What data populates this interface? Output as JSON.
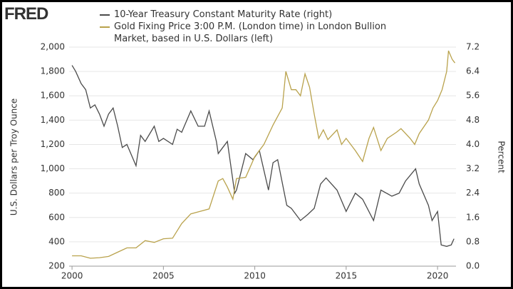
{
  "logo": "FRED",
  "chart_data": {
    "type": "line",
    "xlim": [
      1999.84,
      2021.01
    ],
    "xticks": [
      2000,
      2005,
      2010,
      2015,
      2020
    ],
    "ylim": [
      200,
      2000
    ],
    "yticks": [
      200,
      400,
      600,
      800,
      {
        "value": 1000,
        "label": "1,000"
      },
      {
        "value": 1200,
        "label": "1,200"
      },
      {
        "value": 1400,
        "label": "1,400"
      },
      {
        "value": 1600,
        "label": "1,600"
      },
      {
        "value": 1800,
        "label": "1,800"
      },
      {
        "value": 2000,
        "label": "2,000"
      }
    ],
    "y2lim": [
      0,
      7.2
    ],
    "y2ticks": [
      {
        "value": 0,
        "label": "0.0"
      },
      0.8,
      1.6,
      2.4,
      3.2,
      {
        "value": 4,
        "label": "4.0"
      },
      4.8,
      5.6,
      6.4,
      7.2
    ],
    "ylabel": "U.S. Dollars per Troy Ounce",
    "y2label": "Percent",
    "grid": true,
    "series": [
      {
        "name": "10-Year Treasury Constant Maturity Rate (right)",
        "color": "#4b4b4b",
        "axis": "y2",
        "x": [
          2000,
          2000.2,
          2000.5,
          2000.75,
          2001,
          2001.25,
          2001.5,
          2001.75,
          2002,
          2002.25,
          2002.5,
          2002.75,
          2003,
          2003.5,
          2003.75,
          2004,
          2004.5,
          2004.75,
          2005,
          2005.5,
          2005.75,
          2006,
          2006.5,
          2006.9,
          2007.25,
          2007.5,
          2007.9,
          2008,
          2008.5,
          2008.9,
          2009,
          2009.5,
          2009.9,
          2010.25,
          2010.75,
          2011,
          2011.25,
          2011.75,
          2012,
          2012.5,
          2012.9,
          2013.25,
          2013.6,
          2013.9,
          2014.5,
          2015,
          2015.5,
          2015.9,
          2016.5,
          2016.9,
          2017.5,
          2017.9,
          2018.25,
          2018.8,
          2019,
          2019.5,
          2019.7,
          2020,
          2020.2,
          2020.5,
          2020.75,
          2020.9
        ],
        "values": [
          6.6,
          6.4,
          6.0,
          5.8,
          5.2,
          5.3,
          5.0,
          4.6,
          5.0,
          5.2,
          4.6,
          3.9,
          4.0,
          3.3,
          4.3,
          4.1,
          4.6,
          4.1,
          4.2,
          4.0,
          4.5,
          4.4,
          5.1,
          4.6,
          4.6,
          5.1,
          4.1,
          3.7,
          4.1,
          2.4,
          2.5,
          3.7,
          3.5,
          3.8,
          2.5,
          3.4,
          3.5,
          2.0,
          1.9,
          1.5,
          1.7,
          1.9,
          2.7,
          2.9,
          2.5,
          1.8,
          2.4,
          2.2,
          1.5,
          2.5,
          2.3,
          2.4,
          2.8,
          3.2,
          2.7,
          2.0,
          1.5,
          1.8,
          0.7,
          0.65,
          0.7,
          0.9
        ]
      },
      {
        "name": "Gold Fixing Price 3:00 P.M. (London time) in London Bullion Market, based in U.S. Dollars (left)",
        "color": "#b9a24c",
        "axis": "y",
        "x": [
          2000,
          2000.5,
          2001,
          2001.5,
          2002,
          2002.5,
          2003,
          2003.5,
          2004,
          2004.5,
          2005,
          2005.5,
          2006,
          2006.5,
          2007,
          2007.5,
          2008,
          2008.25,
          2008.5,
          2008.8,
          2009,
          2009.5,
          2010,
          2010.5,
          2011,
          2011.5,
          2011.7,
          2012,
          2012.25,
          2012.5,
          2012.75,
          2013,
          2013.25,
          2013.5,
          2013.75,
          2014,
          2014.5,
          2014.75,
          2015,
          2015.5,
          2015.9,
          2016.25,
          2016.5,
          2016.9,
          2017.25,
          2017.75,
          2018,
          2018.5,
          2018.75,
          2019,
          2019.5,
          2019.75,
          2020,
          2020.25,
          2020.5,
          2020.6,
          2020.8,
          2020.95
        ],
        "values": [
          285,
          285,
          265,
          270,
          280,
          315,
          350,
          350,
          410,
          395,
          425,
          430,
          550,
          630,
          650,
          670,
          900,
          920,
          850,
          750,
          920,
          930,
          1100,
          1200,
          1360,
          1500,
          1800,
          1650,
          1650,
          1600,
          1780,
          1670,
          1450,
          1250,
          1320,
          1240,
          1320,
          1200,
          1250,
          1150,
          1060,
          1250,
          1340,
          1150,
          1250,
          1300,
          1330,
          1250,
          1200,
          1290,
          1400,
          1500,
          1560,
          1650,
          1800,
          1970,
          1900,
          1870
        ]
      }
    ]
  }
}
